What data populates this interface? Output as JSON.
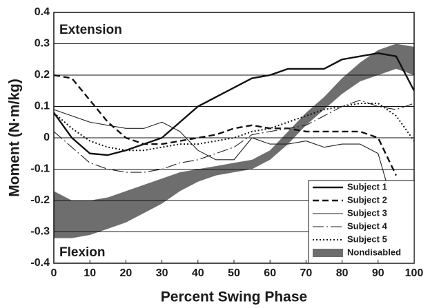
{
  "chart_data": {
    "type": "line",
    "xlabel": "Percent Swing Phase",
    "ylabel": "Moment (N·m/kg)",
    "annotations": [
      "Extension",
      "Flexion"
    ],
    "x": [
      0,
      5,
      10,
      15,
      20,
      25,
      30,
      35,
      40,
      45,
      50,
      55,
      60,
      65,
      70,
      75,
      80,
      85,
      90,
      95,
      100
    ],
    "xlim": [
      0,
      100
    ],
    "xticks": [
      0,
      10,
      20,
      30,
      40,
      50,
      60,
      70,
      80,
      90,
      100
    ],
    "ylim": [
      -0.4,
      0.4
    ],
    "yticks": [
      0.4,
      0.3,
      0.2,
      0.1,
      0,
      -0.1,
      -0.2,
      -0.3,
      -0.4
    ],
    "grid": true,
    "legend": "lower right",
    "series": [
      {
        "name": "Subject 1",
        "color": "#111111",
        "style": "solid",
        "width": 2.4,
        "values": [
          0.08,
          0.0,
          -0.05,
          -0.055,
          -0.04,
          -0.02,
          0.0,
          0.05,
          0.1,
          0.13,
          0.16,
          0.19,
          0.2,
          0.22,
          0.22,
          0.22,
          0.25,
          0.26,
          0.27,
          0.26,
          0.15
        ]
      },
      {
        "name": "Subject 2",
        "color": "#111111",
        "style": "dashed",
        "width": 2.4,
        "values": [
          0.2,
          0.19,
          0.12,
          0.05,
          0.0,
          -0.02,
          -0.02,
          -0.01,
          0.0,
          0.01,
          0.03,
          0.04,
          0.03,
          0.03,
          0.02,
          0.02,
          0.02,
          0.02,
          0.0,
          -0.12,
          null
        ]
      },
      {
        "name": "Subject 3",
        "color": "#222222",
        "style": "solid",
        "width": 1.1,
        "values": [
          0.09,
          0.07,
          0.05,
          0.04,
          0.03,
          0.03,
          0.05,
          0.02,
          -0.04,
          -0.07,
          -0.07,
          0.0,
          -0.02,
          -0.02,
          -0.01,
          -0.03,
          -0.02,
          -0.02,
          -0.05,
          -0.25,
          null
        ]
      },
      {
        "name": "Subject 4",
        "color": "#222222",
        "style": "longdash",
        "width": 1.1,
        "values": [
          0.02,
          -0.03,
          -0.08,
          -0.1,
          -0.11,
          -0.11,
          -0.1,
          -0.08,
          -0.07,
          -0.05,
          -0.03,
          0.01,
          0.02,
          0.03,
          0.04,
          0.07,
          0.1,
          0.12,
          0.1,
          0.09,
          0.11
        ]
      },
      {
        "name": "Subject 5",
        "color": "#111111",
        "style": "dotted",
        "width": 2,
        "values": [
          0.08,
          0.03,
          -0.01,
          -0.03,
          -0.04,
          -0.04,
          -0.03,
          -0.02,
          -0.02,
          -0.01,
          0.0,
          0.02,
          0.03,
          0.05,
          0.07,
          0.09,
          0.1,
          0.11,
          0.11,
          0.07,
          -0.01
        ]
      }
    ],
    "band": {
      "name": "Nondisabled",
      "color": "#6e6e6e",
      "lower": [
        -0.32,
        -0.32,
        -0.31,
        -0.29,
        -0.27,
        -0.24,
        -0.21,
        -0.17,
        -0.14,
        -0.12,
        -0.11,
        -0.1,
        -0.07,
        -0.02,
        0.04,
        0.09,
        0.14,
        0.18,
        0.2,
        0.22,
        0.2
      ],
      "upper": [
        -0.17,
        -0.2,
        -0.2,
        -0.19,
        -0.17,
        -0.15,
        -0.13,
        -0.11,
        -0.1,
        -0.09,
        -0.08,
        -0.07,
        -0.04,
        0.02,
        0.08,
        0.13,
        0.19,
        0.24,
        0.28,
        0.3,
        0.29
      ]
    }
  }
}
